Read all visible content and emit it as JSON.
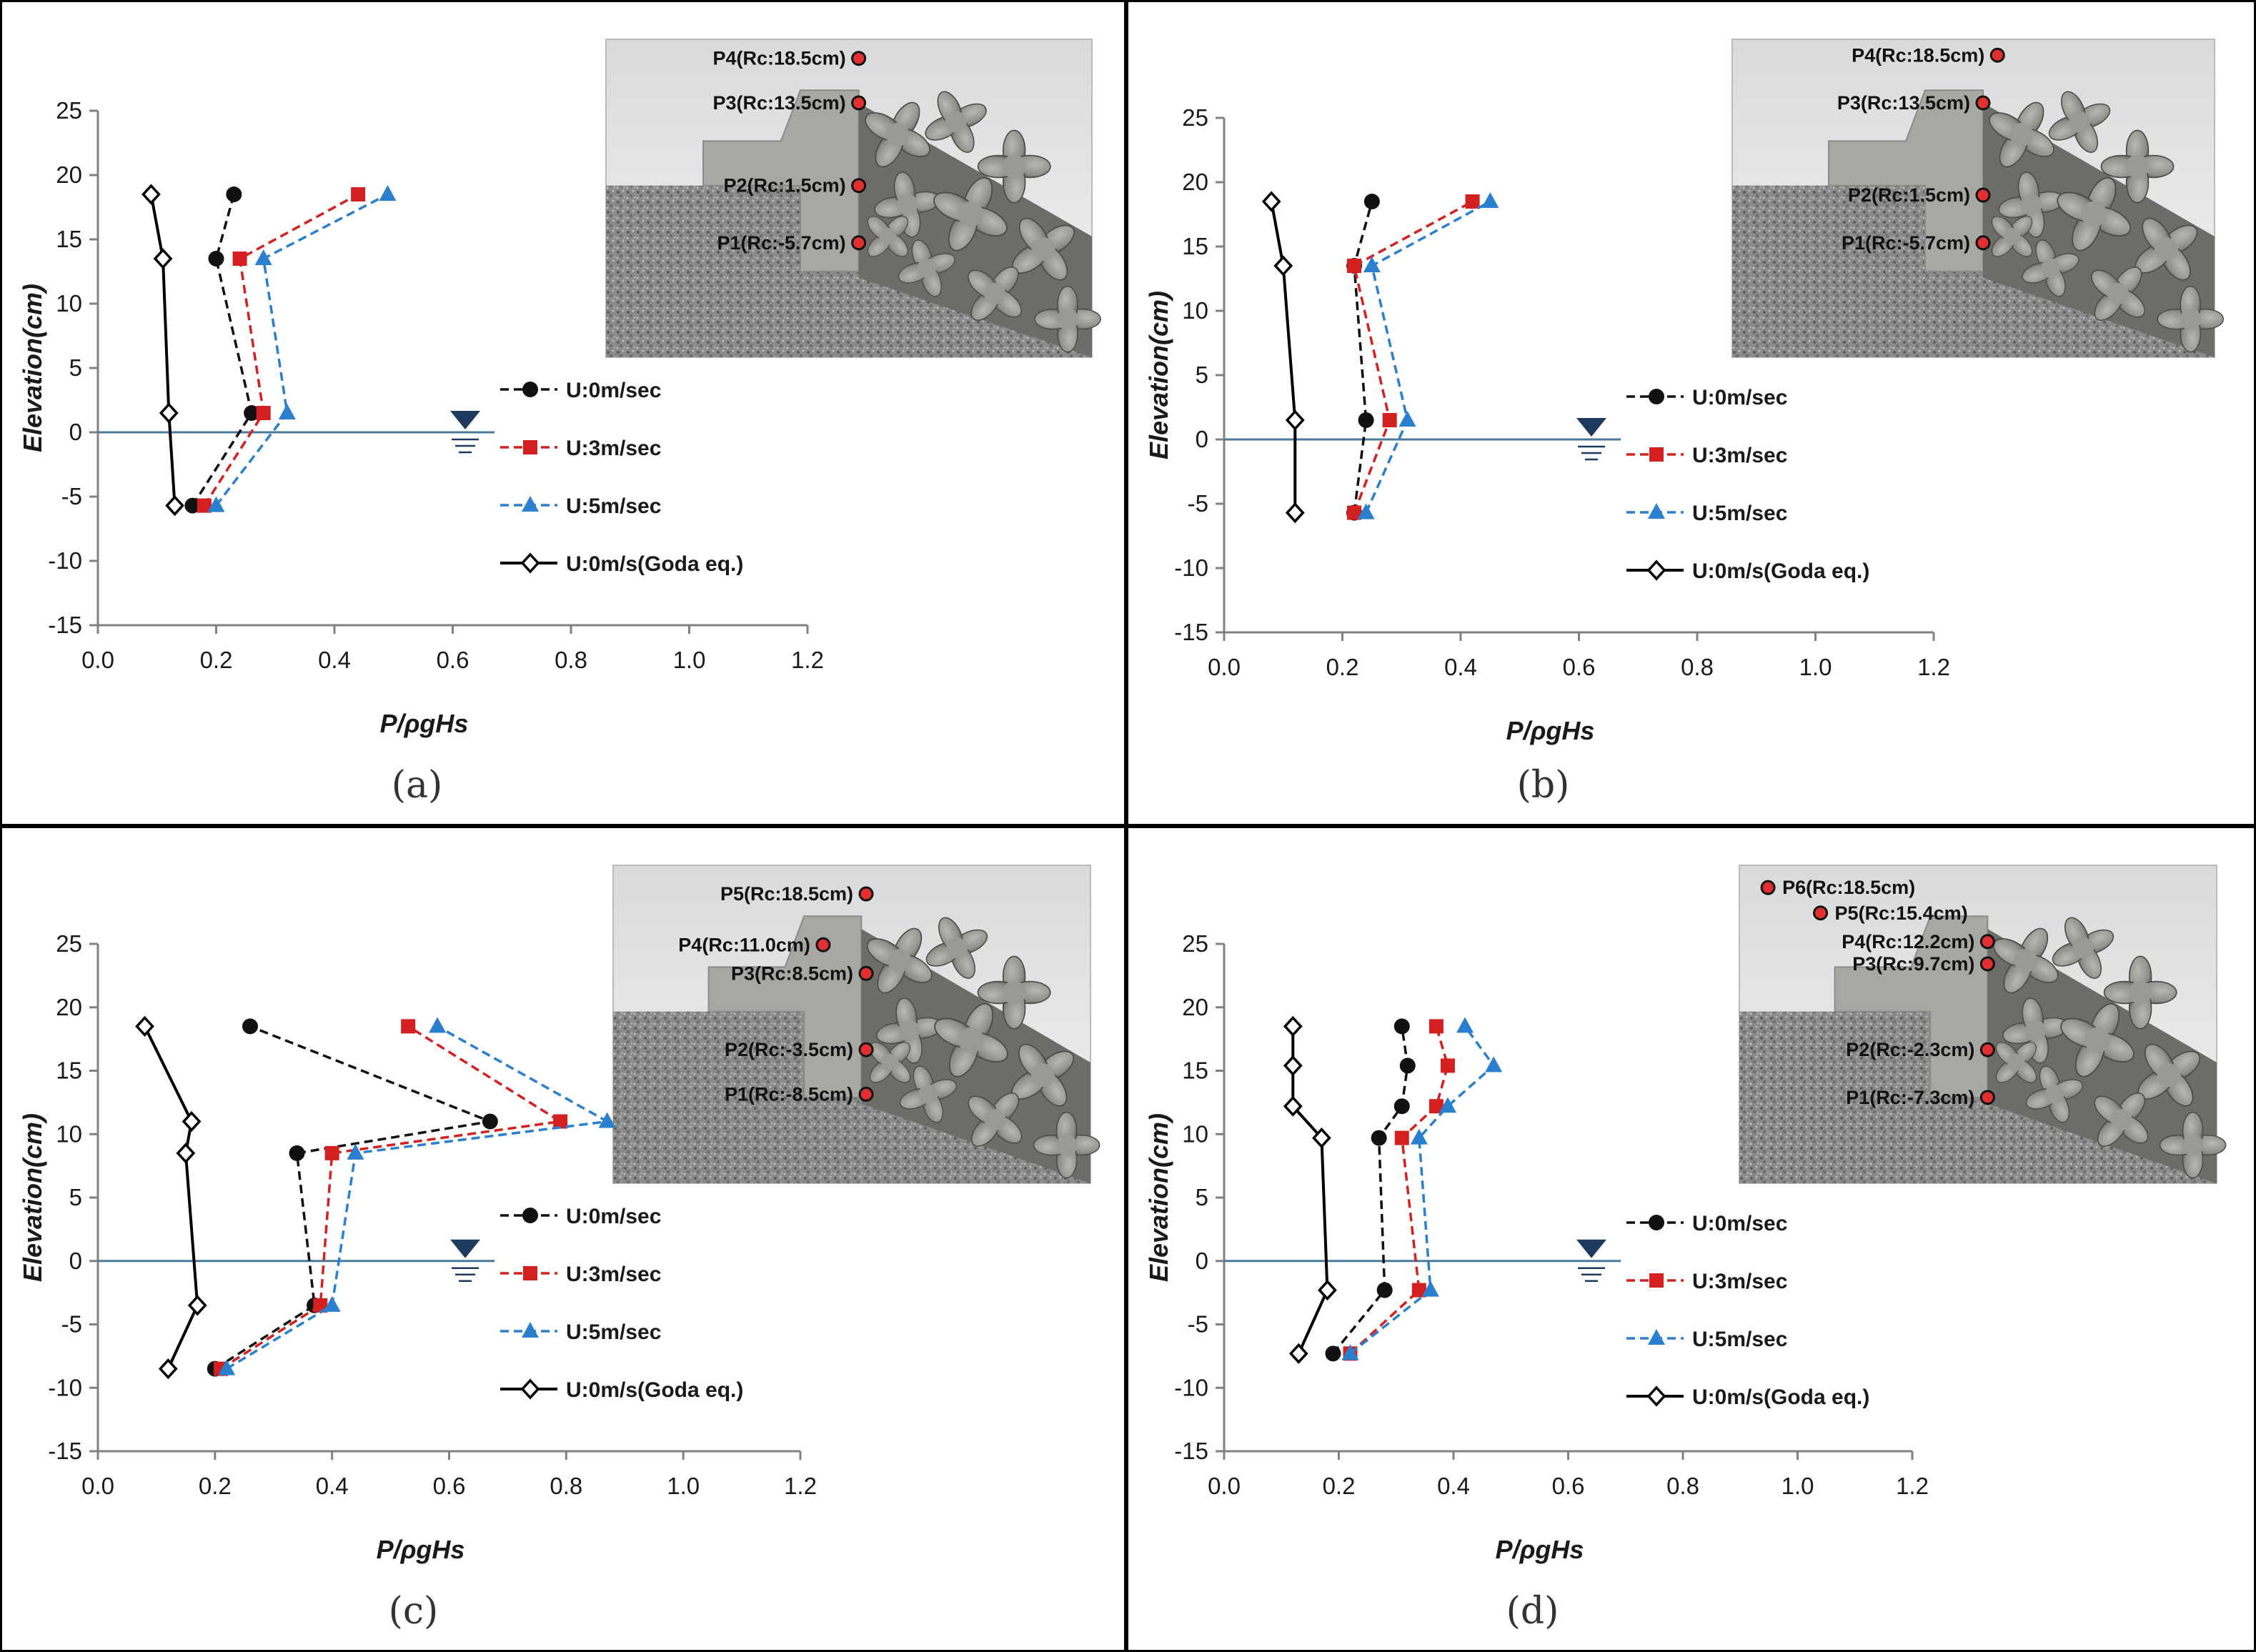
{
  "figure": {
    "colors": {
      "U0": "#111111",
      "U3": "#d42020",
      "U5": "#2a7fcf",
      "goda": "#000000",
      "water_marker": "#1f3a5f"
    },
    "legend_labels": [
      "U:0m/sec",
      "U:3m/sec",
      "U:5m/sec",
      "U:0m/s(Goda eq.)"
    ]
  },
  "chart_data": [
    {
      "type": "line",
      "panel_label": "(a)",
      "xlabel": "P/ρgHs",
      "ylabel": "Elevation(cm)",
      "xlim": [
        0.0,
        1.2
      ],
      "ylim": [
        -15,
        25
      ],
      "xticks": [
        "0.0",
        "0.2",
        "0.4",
        "0.6",
        "0.8",
        "1.0",
        "1.2"
      ],
      "yticks": [
        "25",
        "20",
        "15",
        "10",
        "5",
        "0",
        "-5",
        "-10",
        "-15"
      ],
      "water_level": 0,
      "series": [
        {
          "name": "U:0m/sec",
          "marker": "circle",
          "dash": "dashed",
          "points": [
            [
              0.16,
              -5.7
            ],
            [
              0.26,
              1.5
            ],
            [
              0.2,
              13.5
            ],
            [
              0.23,
              18.5
            ]
          ]
        },
        {
          "name": "U:3m/sec",
          "marker": "square",
          "dash": "dashed",
          "points": [
            [
              0.18,
              -5.7
            ],
            [
              0.28,
              1.5
            ],
            [
              0.24,
              13.5
            ],
            [
              0.44,
              18.5
            ]
          ]
        },
        {
          "name": "U:5m/sec",
          "marker": "triangle",
          "dash": "dashed",
          "points": [
            [
              0.2,
              -5.7
            ],
            [
              0.32,
              1.5
            ],
            [
              0.28,
              13.5
            ],
            [
              0.49,
              18.5
            ]
          ]
        },
        {
          "name": "U:0m/s(Goda eq.)",
          "marker": "diamond",
          "dash": "solid",
          "points": [
            [
              0.13,
              -5.7
            ],
            [
              0.12,
              1.5
            ],
            [
              0.11,
              13.5
            ],
            [
              0.09,
              18.5
            ]
          ]
        }
      ],
      "inset_labels": [
        "P4(Rc:18.5cm)",
        "P3(Rc:13.5cm)",
        "P2(Rc:1.5cm)",
        "P1(Rc:-5.7cm)"
      ]
    },
    {
      "type": "line",
      "panel_label": "(b)",
      "xlabel": "P/ρgHs",
      "ylabel": "Elevation(cm)",
      "xlim": [
        0.0,
        1.2
      ],
      "ylim": [
        -15,
        25
      ],
      "xticks": [
        "0.0",
        "0.2",
        "0.4",
        "0.6",
        "0.8",
        "1.0",
        "1.2"
      ],
      "yticks": [
        "25",
        "20",
        "15",
        "10",
        "5",
        "0",
        "-5",
        "-10",
        "-15"
      ],
      "water_level": 0,
      "series": [
        {
          "name": "U:0m/sec",
          "marker": "circle",
          "dash": "dashed",
          "points": [
            [
              0.22,
              -5.7
            ],
            [
              0.24,
              1.5
            ],
            [
              0.22,
              13.5
            ],
            [
              0.25,
              18.5
            ]
          ]
        },
        {
          "name": "U:3m/sec",
          "marker": "square",
          "dash": "dashed",
          "points": [
            [
              0.22,
              -5.7
            ],
            [
              0.28,
              1.5
            ],
            [
              0.22,
              13.5
            ],
            [
              0.42,
              18.5
            ]
          ]
        },
        {
          "name": "U:5m/sec",
          "marker": "triangle",
          "dash": "dashed",
          "points": [
            [
              0.24,
              -5.7
            ],
            [
              0.31,
              1.5
            ],
            [
              0.25,
              13.5
            ],
            [
              0.45,
              18.5
            ]
          ]
        },
        {
          "name": "U:0m/s(Goda eq.)",
          "marker": "diamond",
          "dash": "solid",
          "points": [
            [
              0.12,
              -5.7
            ],
            [
              0.12,
              1.5
            ],
            [
              0.1,
              13.5
            ],
            [
              0.08,
              18.5
            ]
          ]
        }
      ],
      "inset_labels": [
        "P4(Rc:18.5cm)",
        "P3(Rc:13.5cm)",
        "P2(Rc:1.5cm)",
        "P1(Rc:-5.7cm)"
      ]
    },
    {
      "type": "line",
      "panel_label": "(c)",
      "xlabel": "P/ρgHs",
      "ylabel": "Elevation(cm)",
      "xlim": [
        0.0,
        1.2
      ],
      "ylim": [
        -15,
        25
      ],
      "xticks": [
        "0.0",
        "0.2",
        "0.4",
        "0.6",
        "0.8",
        "1.0",
        "1.2"
      ],
      "yticks": [
        "25",
        "20",
        "15",
        "10",
        "5",
        "0",
        "-5",
        "-10",
        "-15"
      ],
      "water_level": 0,
      "series": [
        {
          "name": "U:0m/sec",
          "marker": "circle",
          "dash": "dashed",
          "points": [
            [
              0.2,
              -8.5
            ],
            [
              0.37,
              -3.5
            ],
            [
              0.34,
              8.5
            ],
            [
              0.67,
              11.0
            ],
            [
              0.26,
              18.5
            ]
          ]
        },
        {
          "name": "U:3m/sec",
          "marker": "square",
          "dash": "dashed",
          "points": [
            [
              0.21,
              -8.5
            ],
            [
              0.38,
              -3.5
            ],
            [
              0.4,
              8.5
            ],
            [
              0.79,
              11.0
            ],
            [
              0.53,
              18.5
            ]
          ]
        },
        {
          "name": "U:5m/sec",
          "marker": "triangle",
          "dash": "dashed",
          "points": [
            [
              0.22,
              -8.5
            ],
            [
              0.4,
              -3.5
            ],
            [
              0.44,
              8.5
            ],
            [
              0.87,
              11.0
            ],
            [
              0.58,
              18.5
            ]
          ]
        },
        {
          "name": "U:0m/s(Goda eq.)",
          "marker": "diamond",
          "dash": "solid",
          "points": [
            [
              0.12,
              -8.5
            ],
            [
              0.17,
              -3.5
            ],
            [
              0.15,
              8.5
            ],
            [
              0.16,
              11.0
            ],
            [
              0.08,
              18.5
            ]
          ]
        }
      ],
      "inset_labels": [
        "P5(Rc:18.5cm)",
        "P4(Rc:11.0cm)",
        "P3(Rc:8.5cm)",
        "P2(Rc:-3.5cm)",
        "P1(Rc:-8.5cm)"
      ]
    },
    {
      "type": "line",
      "panel_label": "(d)",
      "xlabel": "P/ρgHs",
      "ylabel": "Elevation(cm)",
      "xlim": [
        0.0,
        1.2
      ],
      "ylim": [
        -15,
        25
      ],
      "xticks": [
        "0.0",
        "0.2",
        "0.4",
        "0.6",
        "0.8",
        "1.0",
        "1.2"
      ],
      "yticks": [
        "25",
        "20",
        "15",
        "10",
        "5",
        "0",
        "-5",
        "-10",
        "-15"
      ],
      "water_level": 0,
      "series": [
        {
          "name": "U:0m/sec",
          "marker": "circle",
          "dash": "dashed",
          "points": [
            [
              0.19,
              -7.3
            ],
            [
              0.28,
              -2.3
            ],
            [
              0.27,
              9.7
            ],
            [
              0.31,
              12.2
            ],
            [
              0.32,
              15.4
            ],
            [
              0.31,
              18.5
            ]
          ]
        },
        {
          "name": "U:3m/sec",
          "marker": "square",
          "dash": "dashed",
          "points": [
            [
              0.22,
              -7.3
            ],
            [
              0.34,
              -2.3
            ],
            [
              0.31,
              9.7
            ],
            [
              0.37,
              12.2
            ],
            [
              0.39,
              15.4
            ],
            [
              0.37,
              18.5
            ]
          ]
        },
        {
          "name": "U:5m/sec",
          "marker": "triangle",
          "dash": "dashed",
          "points": [
            [
              0.22,
              -7.3
            ],
            [
              0.36,
              -2.3
            ],
            [
              0.34,
              9.7
            ],
            [
              0.39,
              12.2
            ],
            [
              0.47,
              15.4
            ],
            [
              0.42,
              18.5
            ]
          ]
        },
        {
          "name": "U:0m/s(Goda eq.)",
          "marker": "diamond",
          "dash": "solid",
          "points": [
            [
              0.13,
              -7.3
            ],
            [
              0.18,
              -2.3
            ],
            [
              0.17,
              9.7
            ],
            [
              0.12,
              12.2
            ],
            [
              0.12,
              15.4
            ],
            [
              0.12,
              18.5
            ]
          ]
        }
      ],
      "inset_labels": [
        "P6(Rc:18.5cm)",
        "P5(Rc:15.4cm)",
        "P4(Rc:12.2cm)",
        "P3(Rc:9.7cm)",
        "P2(Rc:-2.3cm)",
        "P1(Rc:-7.3cm)"
      ]
    }
  ]
}
